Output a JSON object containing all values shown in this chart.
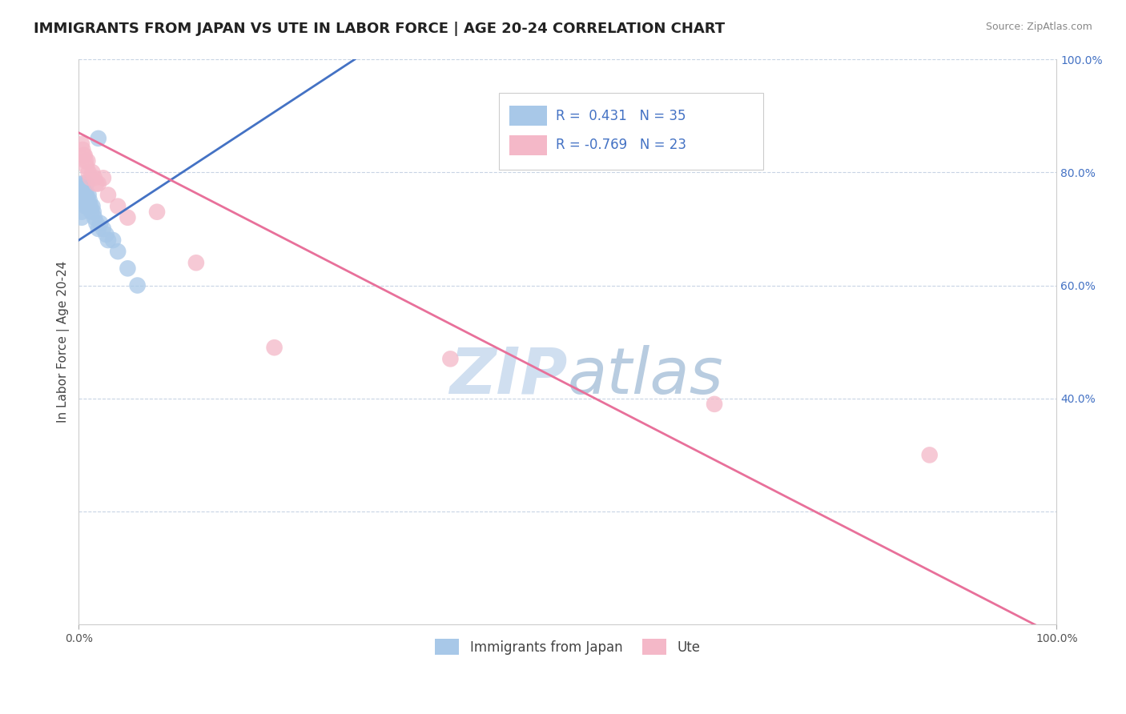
{
  "title": "IMMIGRANTS FROM JAPAN VS UTE IN LABOR FORCE | AGE 20-24 CORRELATION CHART",
  "source": "Source: ZipAtlas.com",
  "ylabel": "In Labor Force | Age 20-24",
  "xlim": [
    0,
    1
  ],
  "ylim": [
    0,
    1
  ],
  "blue_R": 0.431,
  "blue_N": 35,
  "pink_R": -0.769,
  "pink_N": 23,
  "blue_color": "#a8c8e8",
  "pink_color": "#f4b8c8",
  "blue_line_color": "#4472c4",
  "pink_line_color": "#e8709a",
  "watermark_zip": "ZIP",
  "watermark_atlas": "atlas",
  "watermark_color_zip": "#d0dff0",
  "watermark_color_atlas": "#b8cce0",
  "legend_label_blue": "Immigrants from Japan",
  "legend_label_pink": "Ute",
  "blue_scatter_x": [
    0.003,
    0.003,
    0.003,
    0.003,
    0.003,
    0.004,
    0.004,
    0.005,
    0.005,
    0.006,
    0.006,
    0.007,
    0.007,
    0.008,
    0.008,
    0.009,
    0.009,
    0.01,
    0.011,
    0.012,
    0.013,
    0.014,
    0.015,
    0.016,
    0.018,
    0.02,
    0.022,
    0.025,
    0.028,
    0.03,
    0.035,
    0.04,
    0.05,
    0.06,
    0.02
  ],
  "blue_scatter_y": [
    0.78,
    0.76,
    0.75,
    0.73,
    0.72,
    0.77,
    0.75,
    0.78,
    0.76,
    0.77,
    0.75,
    0.76,
    0.74,
    0.78,
    0.76,
    0.75,
    0.74,
    0.76,
    0.75,
    0.74,
    0.73,
    0.74,
    0.73,
    0.72,
    0.71,
    0.7,
    0.71,
    0.7,
    0.69,
    0.68,
    0.68,
    0.66,
    0.63,
    0.6,
    0.86
  ],
  "pink_scatter_x": [
    0.003,
    0.004,
    0.005,
    0.006,
    0.007,
    0.008,
    0.009,
    0.01,
    0.012,
    0.014,
    0.016,
    0.018,
    0.02,
    0.025,
    0.03,
    0.04,
    0.05,
    0.08,
    0.12,
    0.2,
    0.38,
    0.65,
    0.87
  ],
  "pink_scatter_y": [
    0.85,
    0.84,
    0.83,
    0.83,
    0.82,
    0.81,
    0.82,
    0.8,
    0.79,
    0.8,
    0.79,
    0.78,
    0.78,
    0.79,
    0.76,
    0.74,
    0.72,
    0.73,
    0.64,
    0.49,
    0.47,
    0.39,
    0.3
  ],
  "blue_trendline_x": [
    0.0,
    0.3
  ],
  "blue_trendline_y": [
    0.68,
    1.02
  ],
  "pink_trendline_x": [
    0.0,
    1.0
  ],
  "pink_trendline_y": [
    0.87,
    -0.02
  ],
  "background_color": "#ffffff",
  "grid_color": "#c8d4e4",
  "title_fontsize": 13,
  "axis_label_fontsize": 11,
  "tick_fontsize": 10,
  "legend_fontsize": 11,
  "right_tick_color": "#4472c4"
}
